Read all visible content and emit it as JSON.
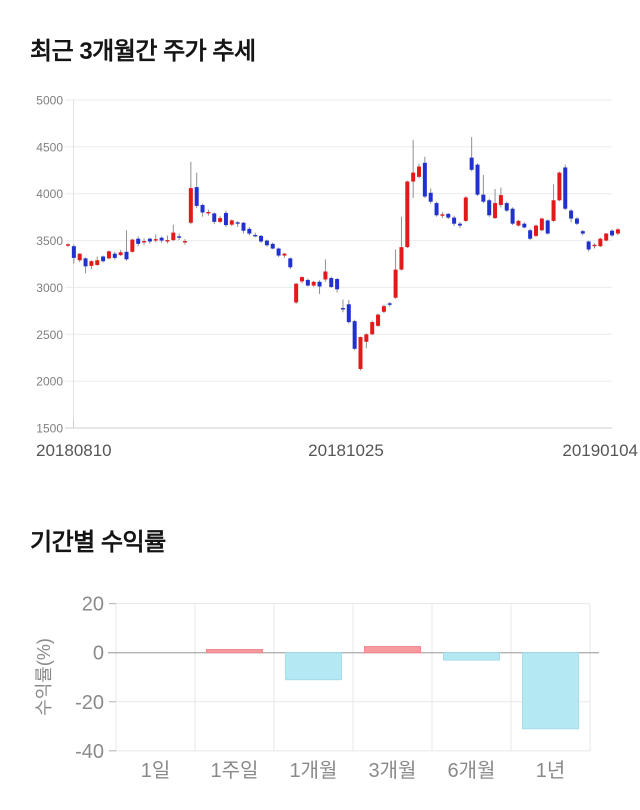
{
  "chart_data": [
    {
      "type": "candlestick",
      "title": "최근 3개월간 주가 추세",
      "y_axis": {
        "min": 1500,
        "max": 5000,
        "ticks": [
          5000,
          4500,
          4000,
          3500,
          3000,
          2500,
          2000,
          1500
        ]
      },
      "x_axis": {
        "labels": [
          "20180810",
          "20181025",
          "20190104"
        ]
      },
      "grid": "horizontal",
      "legend": "none",
      "colors": {
        "up": "#e41919",
        "down": "#2031d0",
        "wick": "#8f8f8f",
        "grid": "#ebebeb",
        "axis": "#cfcfcf",
        "axis_vertical": "#e3e3e3",
        "tick_label": "#7f7f7f",
        "x_label": "#565656"
      },
      "candles_ohlc": [
        [
          3445,
          3470,
          3430,
          3460
        ],
        [
          3440,
          3455,
          3255,
          3315
        ],
        [
          3290,
          3365,
          3270,
          3360
        ],
        [
          3310,
          3320,
          3150,
          3225
        ],
        [
          3230,
          3290,
          3195,
          3280
        ],
        [
          3240,
          3330,
          3230,
          3290
        ],
        [
          3330,
          3340,
          3265,
          3280
        ],
        [
          3310,
          3395,
          3300,
          3385
        ],
        [
          3360,
          3380,
          3295,
          3315
        ],
        [
          3345,
          3400,
          3335,
          3375
        ],
        [
          3380,
          3610,
          3285,
          3300
        ],
        [
          3380,
          3520,
          3370,
          3510
        ],
        [
          3520,
          3545,
          3440,
          3465
        ],
        [
          3480,
          3525,
          3455,
          3495
        ],
        [
          3520,
          3530,
          3465,
          3490
        ],
        [
          3500,
          3565,
          3480,
          3515
        ],
        [
          3530,
          3545,
          3475,
          3500
        ],
        [
          3495,
          3555,
          3470,
          3505
        ],
        [
          3505,
          3670,
          3495,
          3585
        ],
        [
          3545,
          3575,
          3505,
          3540
        ],
        [
          3480,
          3515,
          3455,
          3495
        ],
        [
          3690,
          4340,
          3675,
          4060
        ],
        [
          4070,
          4225,
          3845,
          3870
        ],
        [
          3880,
          3895,
          3755,
          3800
        ],
        [
          3795,
          3830,
          3765,
          3805
        ],
        [
          3790,
          3800,
          3675,
          3700
        ],
        [
          3700,
          3760,
          3685,
          3740
        ],
        [
          3795,
          3820,
          3645,
          3665
        ],
        [
          3670,
          3725,
          3655,
          3715
        ],
        [
          3695,
          3705,
          3645,
          3690
        ],
        [
          3690,
          3700,
          3575,
          3605
        ],
        [
          3625,
          3645,
          3555,
          3575
        ],
        [
          3560,
          3585,
          3535,
          3550
        ],
        [
          3550,
          3560,
          3475,
          3490
        ],
        [
          3500,
          3510,
          3435,
          3450
        ],
        [
          3465,
          3480,
          3405,
          3415
        ],
        [
          3415,
          3425,
          3325,
          3340
        ],
        [
          3340,
          3370,
          3315,
          3360
        ],
        [
          3310,
          3320,
          3195,
          3215
        ],
        [
          2840,
          3045,
          2825,
          3040
        ],
        [
          3065,
          3120,
          3045,
          3110
        ],
        [
          3080,
          3095,
          3010,
          3020
        ],
        [
          3020,
          3070,
          3005,
          3060
        ],
        [
          3060,
          3075,
          2930,
          3010
        ],
        [
          3085,
          3300,
          3060,
          3170
        ],
        [
          3100,
          3115,
          2995,
          3005
        ],
        [
          3090,
          3100,
          2945,
          2980
        ],
        [
          2780,
          2870,
          2735,
          2770
        ],
        [
          2820,
          2865,
          2615,
          2630
        ],
        [
          2640,
          2655,
          2330,
          2345
        ],
        [
          2130,
          2475,
          2115,
          2470
        ],
        [
          2420,
          2510,
          2350,
          2500
        ],
        [
          2500,
          2645,
          2490,
          2630
        ],
        [
          2590,
          2720,
          2580,
          2710
        ],
        [
          2740,
          2815,
          2725,
          2800
        ],
        [
          2830,
          2845,
          2795,
          2815
        ],
        [
          2890,
          3405,
          2880,
          3190
        ],
        [
          3190,
          3755,
          3180,
          3430
        ],
        [
          3430,
          4140,
          3420,
          4130
        ],
        [
          4130,
          4575,
          3955,
          4225
        ],
        [
          4180,
          4320,
          4165,
          4290
        ],
        [
          4330,
          4395,
          3955,
          3970
        ],
        [
          4010,
          4055,
          3895,
          3915
        ],
        [
          3900,
          3915,
          3755,
          3770
        ],
        [
          3770,
          3805,
          3740,
          3780
        ],
        [
          3785,
          3795,
          3730,
          3745
        ],
        [
          3745,
          3765,
          3655,
          3680
        ],
        [
          3680,
          3700,
          3635,
          3660
        ],
        [
          3710,
          3975,
          3700,
          3960
        ],
        [
          4385,
          4605,
          4240,
          4255
        ],
        [
          4310,
          4325,
          3975,
          3990
        ],
        [
          3990,
          4200,
          3900,
          3915
        ],
        [
          3930,
          3945,
          3755,
          3770
        ],
        [
          3740,
          4050,
          3730,
          3900
        ],
        [
          3880,
          4065,
          3855,
          3985
        ],
        [
          3900,
          3915,
          3805,
          3820
        ],
        [
          3840,
          3855,
          3665,
          3680
        ],
        [
          3660,
          3720,
          3650,
          3710
        ],
        [
          3680,
          3695,
          3630,
          3640
        ],
        [
          3610,
          3625,
          3505,
          3520
        ],
        [
          3550,
          3670,
          3540,
          3660
        ],
        [
          3610,
          3745,
          3600,
          3735
        ],
        [
          3715,
          3725,
          3565,
          3575
        ],
        [
          3710,
          4100,
          3700,
          3930
        ],
        [
          3930,
          4235,
          3920,
          4225
        ],
        [
          4280,
          4310,
          3825,
          3840
        ],
        [
          3820,
          3835,
          3695,
          3735
        ],
        [
          3735,
          3750,
          3665,
          3680
        ],
        [
          3600,
          3615,
          3555,
          3575
        ],
        [
          3490,
          3500,
          3385,
          3405
        ],
        [
          3440,
          3470,
          3415,
          3455
        ],
        [
          3440,
          3530,
          3430,
          3520
        ],
        [
          3500,
          3580,
          3490,
          3575
        ],
        [
          3605,
          3620,
          3540,
          3555
        ],
        [
          3575,
          3630,
          3560,
          3620
        ]
      ]
    },
    {
      "type": "bar",
      "title": "기간별 수익률",
      "ylabel": "수익률(%)",
      "categories": [
        "1일",
        "1주일",
        "1개월",
        "3개월",
        "6개월",
        "1년"
      ],
      "values": [
        0,
        1.3,
        -11,
        2.5,
        -3,
        -31
      ],
      "y_axis": {
        "min": -40,
        "max": 20,
        "ticks": [
          20,
          0,
          -20,
          -40
        ]
      },
      "grid": "both",
      "legend": "none",
      "colors": {
        "positive_fill": "#f59ba0",
        "positive_border": "#f2868d",
        "negative_fill": "#b4e8f2",
        "negative_border": "#a5dce8",
        "zero_line": "#b2b2b2",
        "grid": "#e7e7e7",
        "text": "#8a8a8a"
      }
    }
  ]
}
